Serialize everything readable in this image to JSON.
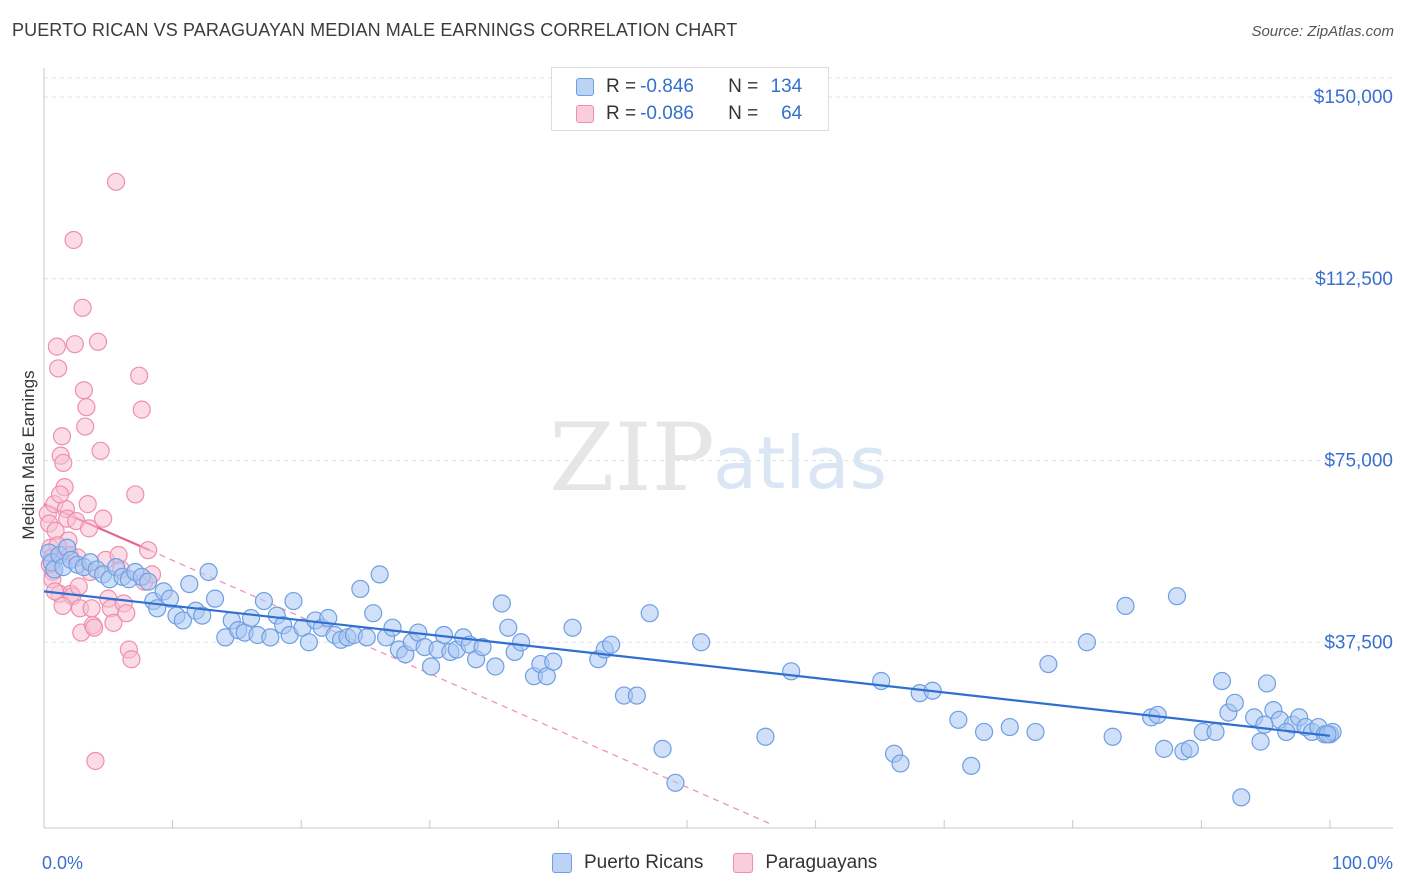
{
  "header": {
    "title": "PUERTO RICAN VS PARAGUAYAN MEDIAN MALE EARNINGS CORRELATION CHART",
    "source": "Source: ZipAtlas.com"
  },
  "watermark": {
    "zip": "ZIP",
    "atlas": "atlas"
  },
  "legend_stats": [
    {
      "r_label": "R =",
      "r_value": "-0.846",
      "n_label": "N =",
      "n_value": "134",
      "color": "#5b8fe0"
    },
    {
      "r_label": "R =",
      "r_value": "-0.086",
      "n_label": "N =",
      "n_value": "64",
      "color": "#f08fb0"
    }
  ],
  "colors": {
    "blue_fill": "#a9c6f2",
    "blue_stroke": "#6e9fe3",
    "blue_line": "#2f6fd0",
    "pink_fill": "#f7bfd1",
    "pink_stroke": "#ef8eb0",
    "pink_line": "#e8638f",
    "axis_label": "#3a6fcf",
    "grid": "#dde3ea"
  },
  "chart_data": {
    "type": "scatter",
    "title": "PUERTO RICAN VS PARAGUAYAN MEDIAN MALE EARNINGS CORRELATION CHART",
    "xlabel": "",
    "ylabel": "Median Male Earnings",
    "xlim": [
      0,
      100
    ],
    "ylim": [
      0,
      150000
    ],
    "x_tick_labels": [
      "0.0%",
      "100.0%"
    ],
    "y_ticks": [
      37500,
      75000,
      112500,
      150000
    ],
    "y_tick_labels": [
      "$37,500",
      "$75,000",
      "$112,500",
      "$150,000"
    ],
    "grid": true,
    "legend_position": "top-center",
    "series": [
      {
        "name": "Puerto Ricans",
        "color": "#6e9fe3",
        "trend": {
          "x": [
            0,
            100
          ],
          "y": [
            48000,
            18200
          ],
          "style": "solid"
        },
        "points": [
          [
            0.4,
            56000
          ],
          [
            0.6,
            54000
          ],
          [
            0.8,
            52500
          ],
          [
            1.2,
            55500
          ],
          [
            1.5,
            53000
          ],
          [
            1.8,
            57000
          ],
          [
            2.1,
            54500
          ],
          [
            2.6,
            53500
          ],
          [
            3.1,
            53000
          ],
          [
            3.6,
            54000
          ],
          [
            4.1,
            52500
          ],
          [
            4.6,
            51500
          ],
          [
            5.1,
            50500
          ],
          [
            5.6,
            53000
          ],
          [
            6.1,
            51000
          ],
          [
            6.6,
            50500
          ],
          [
            7.1,
            52000
          ],
          [
            7.6,
            51000
          ],
          [
            8.1,
            50000
          ],
          [
            8.5,
            46000
          ],
          [
            8.8,
            44500
          ],
          [
            9.3,
            48000
          ],
          [
            9.8,
            46500
          ],
          [
            10.3,
            43000
          ],
          [
            10.8,
            42000
          ],
          [
            11.3,
            49500
          ],
          [
            11.8,
            44000
          ],
          [
            12.3,
            43000
          ],
          [
            12.8,
            52000
          ],
          [
            13.3,
            46500
          ],
          [
            14.1,
            38500
          ],
          [
            14.6,
            42000
          ],
          [
            15.1,
            40000
          ],
          [
            15.6,
            39500
          ],
          [
            16.1,
            42500
          ],
          [
            16.6,
            39000
          ],
          [
            17.1,
            46000
          ],
          [
            17.6,
            38500
          ],
          [
            18.1,
            43000
          ],
          [
            18.6,
            41000
          ],
          [
            19.1,
            39000
          ],
          [
            19.4,
            46000
          ],
          [
            20.1,
            40500
          ],
          [
            20.6,
            37500
          ],
          [
            21.1,
            42000
          ],
          [
            21.6,
            40500
          ],
          [
            22.1,
            42500
          ],
          [
            22.6,
            39000
          ],
          [
            23.1,
            38000
          ],
          [
            23.6,
            38500
          ],
          [
            24.1,
            39000
          ],
          [
            24.6,
            48500
          ],
          [
            25.1,
            38500
          ],
          [
            25.6,
            43500
          ],
          [
            26.1,
            51500
          ],
          [
            26.6,
            38500
          ],
          [
            27.1,
            40500
          ],
          [
            27.6,
            36000
          ],
          [
            28.1,
            35000
          ],
          [
            28.6,
            37500
          ],
          [
            29.1,
            39500
          ],
          [
            29.6,
            36500
          ],
          [
            30.1,
            32500
          ],
          [
            30.6,
            36000
          ],
          [
            31.1,
            39000
          ],
          [
            31.6,
            35500
          ],
          [
            32.1,
            36000
          ],
          [
            32.6,
            38500
          ],
          [
            33.1,
            37000
          ],
          [
            33.6,
            34000
          ],
          [
            34.1,
            36500
          ],
          [
            35.1,
            32500
          ],
          [
            35.6,
            45500
          ],
          [
            36.1,
            40500
          ],
          [
            36.6,
            35500
          ],
          [
            37.1,
            37500
          ],
          [
            38.1,
            30500
          ],
          [
            38.6,
            33000
          ],
          [
            39.1,
            30500
          ],
          [
            39.6,
            33500
          ],
          [
            41.1,
            40500
          ],
          [
            43.1,
            34000
          ],
          [
            43.6,
            36000
          ],
          [
            44.1,
            37000
          ],
          [
            45.1,
            26500
          ],
          [
            46.1,
            26500
          ],
          [
            47.1,
            43500
          ],
          [
            48.1,
            15500
          ],
          [
            49.1,
            8500
          ],
          [
            51.1,
            37500
          ],
          [
            56.1,
            18000
          ],
          [
            58.1,
            31500
          ],
          [
            65.1,
            29500
          ],
          [
            66.1,
            14500
          ],
          [
            66.6,
            12500
          ],
          [
            68.1,
            27000
          ],
          [
            69.1,
            27500
          ],
          [
            71.1,
            21500
          ],
          [
            72.1,
            12000
          ],
          [
            73.1,
            19000
          ],
          [
            75.1,
            20000
          ],
          [
            77.1,
            19000
          ],
          [
            78.1,
            33000
          ],
          [
            81.1,
            37500
          ],
          [
            83.1,
            18000
          ],
          [
            84.1,
            45000
          ],
          [
            86.1,
            22000
          ],
          [
            86.6,
            22500
          ],
          [
            87.1,
            15500
          ],
          [
            88.1,
            47000
          ],
          [
            88.6,
            15000
          ],
          [
            89.1,
            15500
          ],
          [
            90.1,
            19000
          ],
          [
            91.1,
            19000
          ],
          [
            91.6,
            29500
          ],
          [
            92.1,
            23000
          ],
          [
            92.6,
            25000
          ],
          [
            93.1,
            5500
          ],
          [
            94.1,
            22000
          ],
          [
            94.6,
            17000
          ],
          [
            95.1,
            29000
          ],
          [
            95.6,
            23500
          ],
          [
            96.1,
            21500
          ],
          [
            97.1,
            20500
          ],
          [
            97.6,
            22000
          ],
          [
            98.1,
            20000
          ],
          [
            98.6,
            19000
          ],
          [
            99.1,
            20000
          ],
          [
            99.6,
            18500
          ],
          [
            100,
            18500
          ],
          [
            100.2,
            19000
          ],
          [
            99.8,
            18500
          ],
          [
            96.6,
            19000
          ],
          [
            94.9,
            20500
          ]
        ]
      },
      {
        "name": "Paraguayans",
        "color": "#ef8eb0",
        "trend": {
          "x": [
            0,
            8.2
          ],
          "y": [
            66000,
            56500
          ],
          "style": "solid"
        },
        "trend_extension": {
          "x": [
            8.2,
            56.5
          ],
          "y": [
            56500,
            0
          ],
          "style": "dashed"
        },
        "points": [
          [
            0.3,
            64000
          ],
          [
            0.4,
            62000
          ],
          [
            0.5,
            57000
          ],
          [
            0.6,
            55000
          ],
          [
            0.7,
            52000
          ],
          [
            0.8,
            66000
          ],
          [
            0.9,
            60500
          ],
          [
            1.0,
            98500
          ],
          [
            1.1,
            94000
          ],
          [
            1.2,
            47500
          ],
          [
            1.3,
            76000
          ],
          [
            1.4,
            80000
          ],
          [
            1.5,
            74500
          ],
          [
            1.6,
            69500
          ],
          [
            1.7,
            65000
          ],
          [
            1.8,
            63000
          ],
          [
            1.9,
            58500
          ],
          [
            2.0,
            55500
          ],
          [
            2.1,
            47500
          ],
          [
            2.2,
            47000
          ],
          [
            2.3,
            120500
          ],
          [
            2.4,
            99000
          ],
          [
            2.5,
            62500
          ],
          [
            2.6,
            55000
          ],
          [
            2.7,
            49000
          ],
          [
            2.8,
            44500
          ],
          [
            2.9,
            39500
          ],
          [
            3.0,
            106500
          ],
          [
            3.1,
            89500
          ],
          [
            3.2,
            82000
          ],
          [
            3.3,
            86000
          ],
          [
            3.4,
            66000
          ],
          [
            3.5,
            61000
          ],
          [
            3.6,
            52000
          ],
          [
            3.7,
            44500
          ],
          [
            3.8,
            41000
          ],
          [
            3.9,
            40500
          ],
          [
            4.0,
            13000
          ],
          [
            4.2,
            99500
          ],
          [
            4.4,
            77000
          ],
          [
            4.6,
            63000
          ],
          [
            4.8,
            54500
          ],
          [
            5.0,
            46500
          ],
          [
            5.2,
            44500
          ],
          [
            5.4,
            41500
          ],
          [
            5.6,
            132500
          ],
          [
            5.8,
            55500
          ],
          [
            6.0,
            52500
          ],
          [
            6.2,
            45500
          ],
          [
            6.4,
            43500
          ],
          [
            6.6,
            36000
          ],
          [
            6.8,
            34000
          ],
          [
            7.1,
            68000
          ],
          [
            7.4,
            92500
          ],
          [
            7.6,
            85500
          ],
          [
            7.8,
            50000
          ],
          [
            8.1,
            56500
          ],
          [
            8.4,
            51500
          ],
          [
            0.45,
            53500
          ],
          [
            0.65,
            50500
          ],
          [
            0.85,
            48000
          ],
          [
            1.05,
            57500
          ],
          [
            1.25,
            68000
          ],
          [
            1.45,
            45000
          ]
        ]
      }
    ]
  }
}
